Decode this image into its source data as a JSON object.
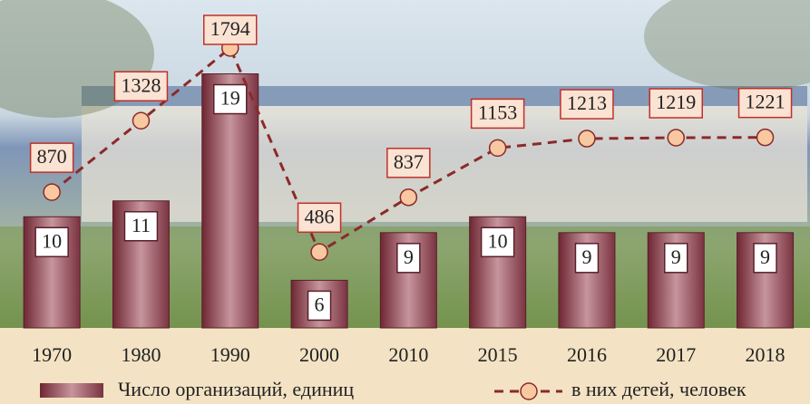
{
  "chart_data": {
    "type": "bar-line",
    "categories": [
      "1970",
      "1980",
      "1990",
      "2000",
      "2010",
      "2015",
      "2016",
      "2017",
      "2018"
    ],
    "series": [
      {
        "name": "Число организаций, единиц",
        "type": "bar",
        "color": "#8a3a48",
        "values": [
          10,
          11,
          19,
          6,
          9,
          10,
          9,
          9,
          9
        ]
      },
      {
        "name": "в них детей, человек",
        "type": "line",
        "axis": "y2",
        "color": "#8b2a2a",
        "values": [
          870,
          1328,
          1794,
          486,
          837,
          1153,
          1213,
          1219,
          1221
        ]
      }
    ],
    "ylim": [
      3,
      20
    ],
    "y2lim": [
      0,
      1730
    ]
  }
}
